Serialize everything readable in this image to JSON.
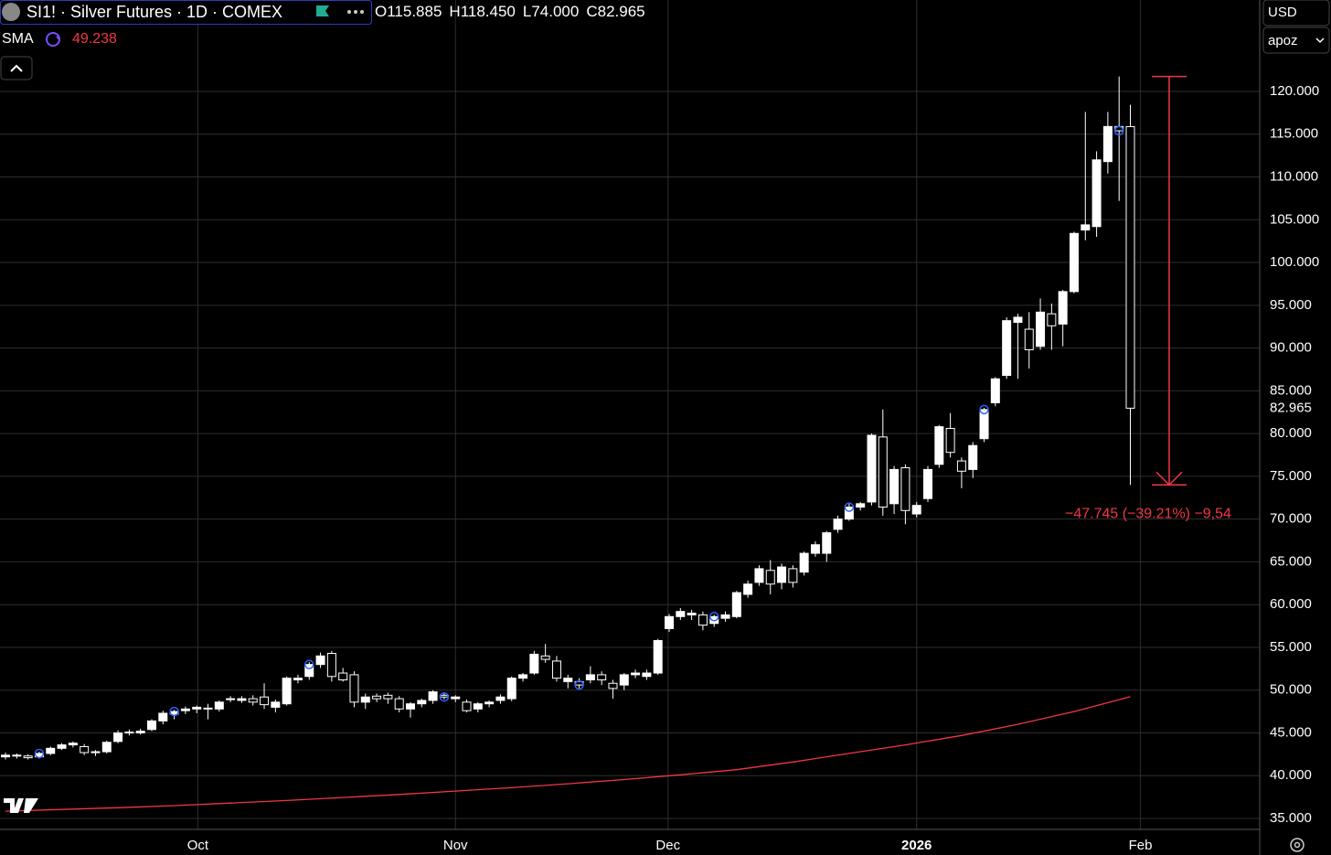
{
  "header": {
    "title": "SI1! · Silver Futures · 1D · COMEX",
    "ohlc": [
      "O115.885",
      "H118.450",
      "L74.000",
      "C82.965"
    ],
    "indicator": "SMA",
    "currency": "USD",
    "unit": "apoz"
  },
  "chart_data": {
    "type": "candlestick",
    "ohlc": [
      [
        42.2,
        42.7,
        41.9,
        42.4
      ],
      [
        42.3,
        42.6,
        42.0,
        42.4
      ],
      [
        42.3,
        42.5,
        41.9,
        42.1
      ],
      [
        42.2,
        42.8,
        42.0,
        42.6
      ],
      [
        42.6,
        43.4,
        42.4,
        43.2
      ],
      [
        43.2,
        43.8,
        43.0,
        43.6
      ],
      [
        43.6,
        44.0,
        43.3,
        43.8
      ],
      [
        43.4,
        43.7,
        42.4,
        42.7
      ],
      [
        42.7,
        43.0,
        42.3,
        42.8
      ],
      [
        42.8,
        44.1,
        42.6,
        43.9
      ],
      [
        44.0,
        45.3,
        43.8,
        45.0
      ],
      [
        45.0,
        45.4,
        44.7,
        45.1
      ],
      [
        45.0,
        45.5,
        44.8,
        45.2
      ],
      [
        45.4,
        46.6,
        45.2,
        46.4
      ],
      [
        46.4,
        47.6,
        46.0,
        47.3
      ],
      [
        47.2,
        47.7,
        46.6,
        47.5
      ],
      [
        47.6,
        48.1,
        47.2,
        47.8
      ],
      [
        47.8,
        48.2,
        47.3,
        48.0
      ],
      [
        47.8,
        48.4,
        46.6,
        47.9
      ],
      [
        47.8,
        48.8,
        47.5,
        48.6
      ],
      [
        48.9,
        49.3,
        48.6,
        49.0
      ],
      [
        48.8,
        49.3,
        48.5,
        49.0
      ],
      [
        49.0,
        49.4,
        48.2,
        48.6
      ],
      [
        49.2,
        50.8,
        47.8,
        48.3
      ],
      [
        48.0,
        48.9,
        47.4,
        48.6
      ],
      [
        48.4,
        51.6,
        48.2,
        51.4
      ],
      [
        51.2,
        51.8,
        50.8,
        51.4
      ],
      [
        51.6,
        53.3,
        51.2,
        53.0
      ],
      [
        53.0,
        54.4,
        52.6,
        54.0
      ],
      [
        54.3,
        54.6,
        51.0,
        51.6
      ],
      [
        52.0,
        52.6,
        51.0,
        51.2
      ],
      [
        51.8,
        52.2,
        48.0,
        48.6
      ],
      [
        48.6,
        49.6,
        47.8,
        49.2
      ],
      [
        49.3,
        49.6,
        48.6,
        49.0
      ],
      [
        49.4,
        49.7,
        48.4,
        49.0
      ],
      [
        49.0,
        49.3,
        47.4,
        47.8
      ],
      [
        47.8,
        48.6,
        46.8,
        48.4
      ],
      [
        48.4,
        49.0,
        48.0,
        48.8
      ],
      [
        48.8,
        50.0,
        48.4,
        49.8
      ],
      [
        49.4,
        49.7,
        48.9,
        49.2
      ],
      [
        49.0,
        49.4,
        48.6,
        49.2
      ],
      [
        48.6,
        48.9,
        47.4,
        47.6
      ],
      [
        47.8,
        48.6,
        47.4,
        48.4
      ],
      [
        48.4,
        48.8,
        48.0,
        48.6
      ],
      [
        48.8,
        49.5,
        48.4,
        49.2
      ],
      [
        49.0,
        51.6,
        48.7,
        51.4
      ],
      [
        51.4,
        52.0,
        51.0,
        51.8
      ],
      [
        52.0,
        54.6,
        51.8,
        54.2
      ],
      [
        54.0,
        55.4,
        53.2,
        53.6
      ],
      [
        53.4,
        54.0,
        51.0,
        51.4
      ],
      [
        51.0,
        51.8,
        50.2,
        51.4
      ],
      [
        51.0,
        51.4,
        50.2,
        50.6
      ],
      [
        51.2,
        52.8,
        50.8,
        51.8
      ],
      [
        51.8,
        52.2,
        50.6,
        51.2
      ],
      [
        50.8,
        51.2,
        49.0,
        50.2
      ],
      [
        50.6,
        52.0,
        50.0,
        51.8
      ],
      [
        51.8,
        52.4,
        51.4,
        52.0
      ],
      [
        51.6,
        52.4,
        51.2,
        52.0
      ],
      [
        52.0,
        56.0,
        51.8,
        55.8
      ],
      [
        57.2,
        58.9,
        56.8,
        58.6
      ],
      [
        58.6,
        59.6,
        58.2,
        59.2
      ],
      [
        58.8,
        59.4,
        58.2,
        59.0
      ],
      [
        58.8,
        59.2,
        57.0,
        57.6
      ],
      [
        57.8,
        58.8,
        57.4,
        58.6
      ],
      [
        58.4,
        59.2,
        58.0,
        58.8
      ],
      [
        58.6,
        61.6,
        58.4,
        61.4
      ],
      [
        61.2,
        62.8,
        60.8,
        62.4
      ],
      [
        62.6,
        64.6,
        62.2,
        64.2
      ],
      [
        64.0,
        65.2,
        61.2,
        62.4
      ],
      [
        62.6,
        64.8,
        61.8,
        64.4
      ],
      [
        64.2,
        64.6,
        62.0,
        62.6
      ],
      [
        63.8,
        66.2,
        63.4,
        66.0
      ],
      [
        66.0,
        67.4,
        65.6,
        67.0
      ],
      [
        66.0,
        68.6,
        65.0,
        68.4
      ],
      [
        68.8,
        70.4,
        68.4,
        70.0
      ],
      [
        70.0,
        71.8,
        69.8,
        71.4
      ],
      [
        71.4,
        72.0,
        71.0,
        71.8
      ],
      [
        72.0,
        80.0,
        71.6,
        79.8
      ],
      [
        79.6,
        82.8,
        70.4,
        71.4
      ],
      [
        71.8,
        76.2,
        70.6,
        75.8
      ],
      [
        76.0,
        76.4,
        69.4,
        71.0
      ],
      [
        70.6,
        72.0,
        70.2,
        71.6
      ],
      [
        72.4,
        76.2,
        72.0,
        75.8
      ],
      [
        76.4,
        81.0,
        76.0,
        80.8
      ],
      [
        80.6,
        82.4,
        77.2,
        77.8
      ],
      [
        76.8,
        77.2,
        73.6,
        75.6
      ],
      [
        75.8,
        79.0,
        74.8,
        78.6
      ],
      [
        79.4,
        83.0,
        79.0,
        82.8
      ],
      [
        83.6,
        86.6,
        83.2,
        86.4
      ],
      [
        86.8,
        93.6,
        86.4,
        93.2
      ],
      [
        93.0,
        94.0,
        86.4,
        93.6
      ],
      [
        92.2,
        94.2,
        87.6,
        89.8
      ],
      [
        90.2,
        95.8,
        89.8,
        94.2
      ],
      [
        94.0,
        95.2,
        89.8,
        92.6
      ],
      [
        92.8,
        96.8,
        90.2,
        96.6
      ],
      [
        96.6,
        103.6,
        96.4,
        103.4
      ],
      [
        103.8,
        117.6,
        102.6,
        104.4
      ],
      [
        104.2,
        113.0,
        103.0,
        112.0
      ],
      [
        111.8,
        117.6,
        110.4,
        115.9
      ],
      [
        115.9,
        121.745,
        107.2,
        115.4
      ],
      [
        115.885,
        118.45,
        74.0,
        82.965
      ]
    ],
    "markers": [
      3,
      15,
      27,
      39,
      51,
      63,
      75,
      87,
      99
    ],
    "sma": {
      "color": "#f23645",
      "x": [
        0,
        5,
        10,
        15,
        20,
        25,
        30,
        35,
        40,
        45,
        50,
        55,
        60,
        65,
        70,
        75,
        80,
        85,
        90,
        95,
        100
      ],
      "values": [
        35.85,
        36.05,
        36.25,
        36.5,
        36.8,
        37.1,
        37.45,
        37.8,
        38.2,
        38.6,
        39.05,
        39.55,
        40.1,
        40.7,
        41.6,
        42.6,
        43.6,
        44.7,
        46.0,
        47.5,
        49.238
      ]
    },
    "measure": {
      "from": 121.745,
      "to": 74.0,
      "label": "−47.745 (−39.21%) −9,54",
      "color": "#f23645"
    },
    "xlim": [
      -0.49,
      111.5
    ],
    "xticks": [
      {
        "value": 17.1,
        "label": "Oct"
      },
      {
        "value": 40,
        "label": "Nov"
      },
      {
        "value": 58.9,
        "label": "Dec"
      },
      {
        "value": 81,
        "label": "2026"
      },
      {
        "value": 100.9,
        "label": "Feb"
      }
    ],
    "ylim": [
      33.72,
      130.69
    ],
    "yticks": [
      {
        "value": 35,
        "label": "35.000"
      },
      {
        "value": 40,
        "label": "40.000"
      },
      {
        "value": 45,
        "label": "45.000"
      },
      {
        "value": 50,
        "label": "50.000"
      },
      {
        "value": 55,
        "label": "55.000"
      },
      {
        "value": 60,
        "label": "60.000"
      },
      {
        "value": 65,
        "label": "65.000"
      },
      {
        "value": 70,
        "label": "70.000"
      },
      {
        "value": 75,
        "label": "75.000"
      },
      {
        "value": 80,
        "label": "80.000"
      },
      {
        "value": 85,
        "label": "85.000"
      },
      {
        "value": 90,
        "label": "90.000"
      },
      {
        "value": 95,
        "label": "95.000"
      },
      {
        "value": 100,
        "label": "100.000"
      },
      {
        "value": 105,
        "label": "105.000"
      },
      {
        "value": 110,
        "label": "110.000"
      },
      {
        "value": 115,
        "label": "115.000"
      },
      {
        "value": 120,
        "label": "120.000"
      }
    ],
    "grid": true,
    "up_color": "#ffffff",
    "marker_color": "#2962ff"
  }
}
